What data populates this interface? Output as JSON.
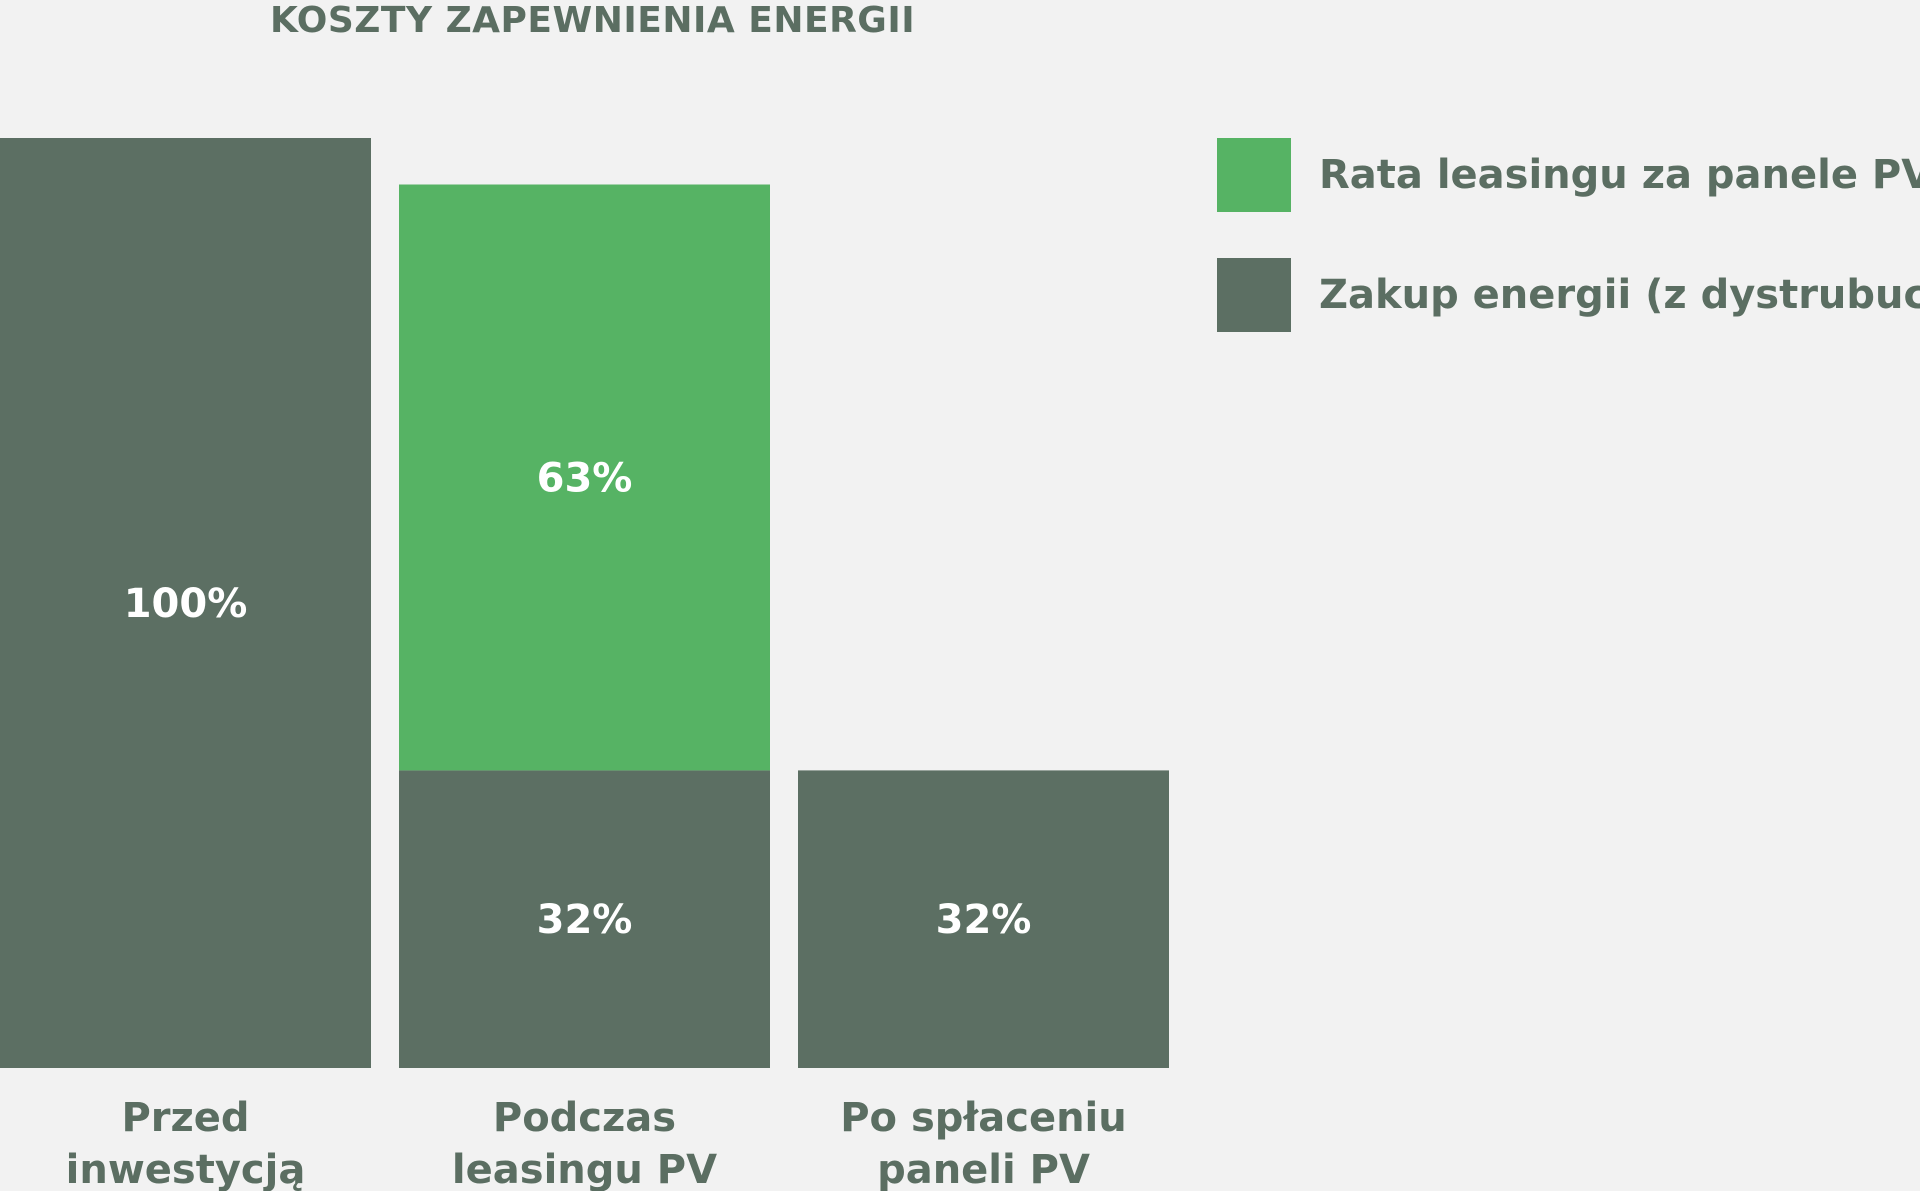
{
  "chart_data": {
    "type": "bar",
    "stacked": true,
    "title": "KOSZTY ZAPEWNIENIA ENERGII",
    "categories": [
      "Przed inwestycją",
      "Podczas leasingu PV",
      "Po spłaceniu paneli PV"
    ],
    "category_lines": [
      [
        "Przed",
        "inwestycją"
      ],
      [
        "Podczas",
        "leasingu PV"
      ],
      [
        "Po spłaceniu",
        "paneli PV"
      ]
    ],
    "series": [
      {
        "name": "Zakup energii (z dystrubucją)",
        "values": [
          100,
          32,
          32
        ],
        "labels": [
          "100%",
          "32%",
          "32%"
        ],
        "color": "#5c6f63"
      },
      {
        "name": "Rata leasingu za panele PV",
        "values": [
          0,
          63,
          0
        ],
        "labels": [
          "",
          "63%",
          ""
        ],
        "color": "#56b364"
      }
    ],
    "ylim": [
      0,
      100
    ],
    "value_labels_color": "#ffffff",
    "legend_position": "right"
  },
  "legend": {
    "items": [
      {
        "label": "Rata leasingu za panele PV",
        "color": "#56b364"
      },
      {
        "label": "Zakup energii (z dystrubucją)",
        "color": "#5c6f63"
      }
    ]
  }
}
